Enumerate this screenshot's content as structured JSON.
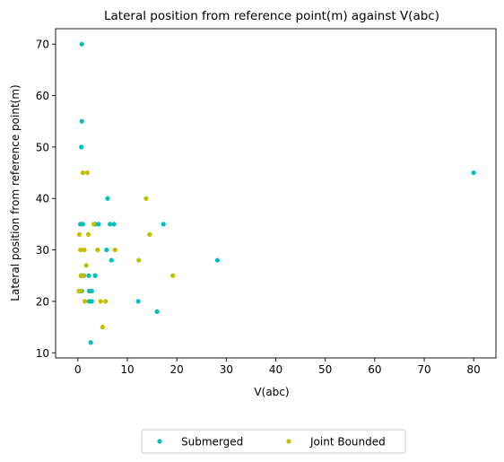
{
  "chart_data": {
    "type": "scatter",
    "title": "Lateral position from reference point(m) against V(abc)",
    "xlabel": "V(abc)",
    "ylabel": "Lateral position from reference point(m)",
    "xlim": [
      -4.5,
      84.5
    ],
    "ylim": [
      9,
      73
    ],
    "xticks": [
      0,
      10,
      20,
      30,
      40,
      50,
      60,
      70,
      80
    ],
    "yticks": [
      10,
      20,
      30,
      40,
      50,
      60,
      70
    ],
    "grid": false,
    "legend_position": "below-center",
    "series": [
      {
        "name": "Submerged",
        "color": "#00bfbf",
        "points": [
          [
            0.8,
            70
          ],
          [
            0.8,
            55
          ],
          [
            0.7,
            50
          ],
          [
            0.5,
            35
          ],
          [
            1.0,
            35
          ],
          [
            3.5,
            35
          ],
          [
            4.2,
            35
          ],
          [
            6.5,
            35
          ],
          [
            7.3,
            35
          ],
          [
            17.3,
            35
          ],
          [
            6.0,
            40
          ],
          [
            80.0,
            45
          ],
          [
            28.2,
            28
          ],
          [
            6.8,
            28
          ],
          [
            5.8,
            30
          ],
          [
            0.7,
            25
          ],
          [
            1.2,
            25
          ],
          [
            2.2,
            25
          ],
          [
            3.5,
            25
          ],
          [
            0.8,
            22
          ],
          [
            2.3,
            22
          ],
          [
            2.8,
            22
          ],
          [
            2.3,
            20
          ],
          [
            2.8,
            20
          ],
          [
            12.2,
            20
          ],
          [
            16.0,
            18
          ],
          [
            2.6,
            12
          ]
        ]
      },
      {
        "name": "Joint Bounded",
        "color": "#bfbf00",
        "points": [
          [
            1.0,
            45
          ],
          [
            1.9,
            45
          ],
          [
            13.8,
            40
          ],
          [
            3.2,
            35
          ],
          [
            0.3,
            33
          ],
          [
            2.1,
            33
          ],
          [
            14.5,
            33
          ],
          [
            0.5,
            30
          ],
          [
            1.3,
            30
          ],
          [
            4.0,
            30
          ],
          [
            7.5,
            30
          ],
          [
            1.7,
            27
          ],
          [
            0.6,
            25
          ],
          [
            1.1,
            25
          ],
          [
            19.2,
            25
          ],
          [
            0.2,
            22
          ],
          [
            0.6,
            22
          ],
          [
            1.4,
            20
          ],
          [
            4.6,
            20
          ],
          [
            5.6,
            20
          ],
          [
            5.0,
            15
          ],
          [
            12.3,
            28
          ]
        ]
      }
    ]
  }
}
